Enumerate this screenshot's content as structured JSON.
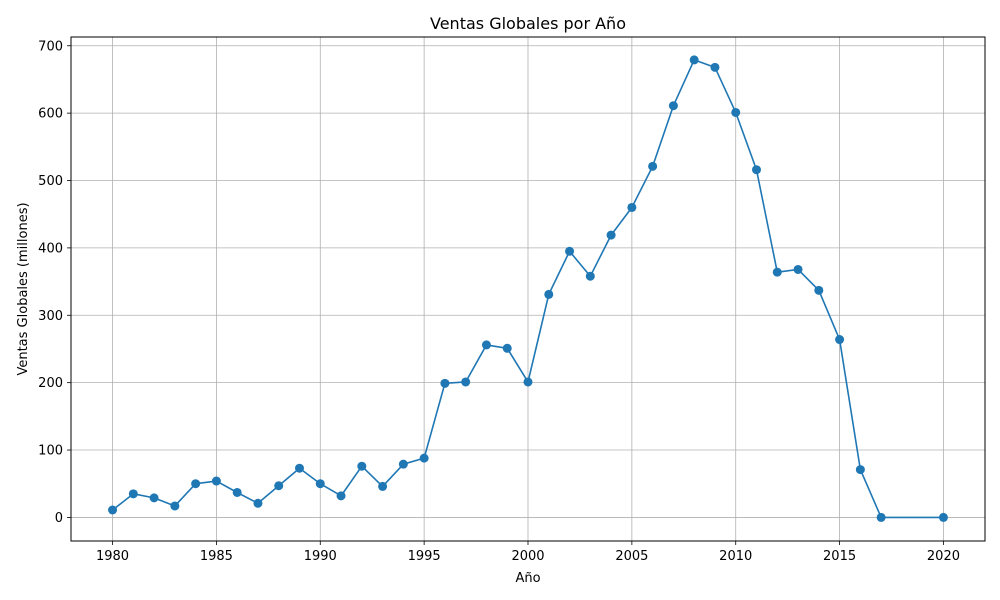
{
  "chart_data": {
    "type": "line",
    "title": "Ventas Globales por Año",
    "xlabel": "Año",
    "ylabel": "Ventas Globales (millones)",
    "xlim": [
      1978,
      2022
    ],
    "ylim": [
      -35,
      713
    ],
    "xticks": [
      1980,
      1985,
      1990,
      1995,
      2000,
      2005,
      2010,
      2015,
      2020
    ],
    "yticks": [
      0,
      100,
      200,
      300,
      400,
      500,
      600,
      700
    ],
    "grid": true,
    "series": [
      {
        "color": "#1f77b4",
        "marker": "circle",
        "points": [
          {
            "x": 1980,
            "y": 11
          },
          {
            "x": 1981,
            "y": 35
          },
          {
            "x": 1982,
            "y": 29
          },
          {
            "x": 1983,
            "y": 17
          },
          {
            "x": 1984,
            "y": 50
          },
          {
            "x": 1985,
            "y": 54
          },
          {
            "x": 1986,
            "y": 37
          },
          {
            "x": 1987,
            "y": 21
          },
          {
            "x": 1988,
            "y": 47
          },
          {
            "x": 1989,
            "y": 73
          },
          {
            "x": 1990,
            "y": 50
          },
          {
            "x": 1991,
            "y": 32
          },
          {
            "x": 1992,
            "y": 76
          },
          {
            "x": 1993,
            "y": 46
          },
          {
            "x": 1994,
            "y": 79
          },
          {
            "x": 1995,
            "y": 88
          },
          {
            "x": 1996,
            "y": 199
          },
          {
            "x": 1997,
            "y": 201
          },
          {
            "x": 1998,
            "y": 256
          },
          {
            "x": 1999,
            "y": 251
          },
          {
            "x": 2000,
            "y": 201
          },
          {
            "x": 2001,
            "y": 331
          },
          {
            "x": 2002,
            "y": 395
          },
          {
            "x": 2003,
            "y": 358
          },
          {
            "x": 2004,
            "y": 419
          },
          {
            "x": 2005,
            "y": 460
          },
          {
            "x": 2006,
            "y": 521
          },
          {
            "x": 2007,
            "y": 611
          },
          {
            "x": 2008,
            "y": 679
          },
          {
            "x": 2009,
            "y": 668
          },
          {
            "x": 2010,
            "y": 601
          },
          {
            "x": 2011,
            "y": 516
          },
          {
            "x": 2012,
            "y": 364
          },
          {
            "x": 2013,
            "y": 368
          },
          {
            "x": 2014,
            "y": 337
          },
          {
            "x": 2015,
            "y": 264
          },
          {
            "x": 2016,
            "y": 71
          },
          {
            "x": 2017,
            "y": 0
          },
          {
            "x": 2020,
            "y": 0
          }
        ]
      }
    ]
  }
}
